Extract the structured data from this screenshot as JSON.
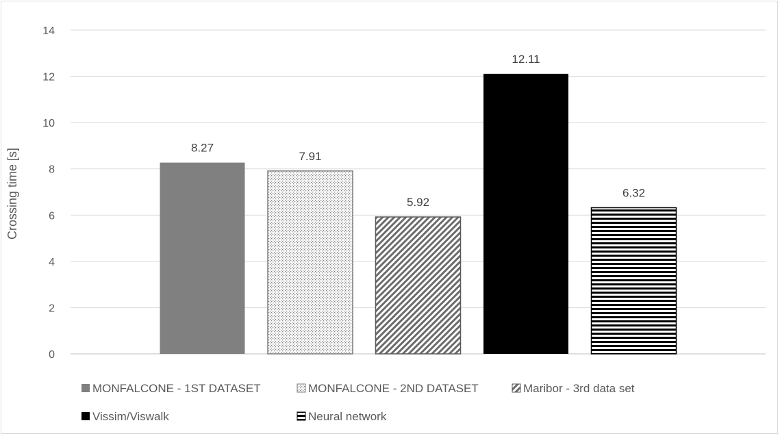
{
  "chart_data": {
    "type": "bar",
    "title": "",
    "xlabel": "",
    "ylabel": "Crossing time [s]",
    "ylim": [
      0,
      14
    ],
    "yticks": [
      0,
      2,
      4,
      6,
      8,
      10,
      12,
      14
    ],
    "grid": true,
    "legend_position": "bottom",
    "series": [
      {
        "name": "MONFALCONE - 1ST DATASET",
        "value": 8.27,
        "label": "8.27",
        "fill": "solid-gray",
        "color": "#808080"
      },
      {
        "name": "MONFALCONE - 2ND DATASET",
        "value": 7.91,
        "label": "7.91",
        "fill": "dotted",
        "color": "#7f7f7f"
      },
      {
        "name": "Maribor - 3rd data set",
        "value": 5.92,
        "label": "5.92",
        "fill": "diagonal-stripes",
        "color": "#595959"
      },
      {
        "name": "Vissim/Viswalk",
        "value": 12.11,
        "label": "12.11",
        "fill": "solid-black",
        "color": "#000000"
      },
      {
        "name": "Neural network",
        "value": 6.32,
        "label": "6.32",
        "fill": "horizontal-stripes",
        "color": "#000000"
      }
    ]
  }
}
